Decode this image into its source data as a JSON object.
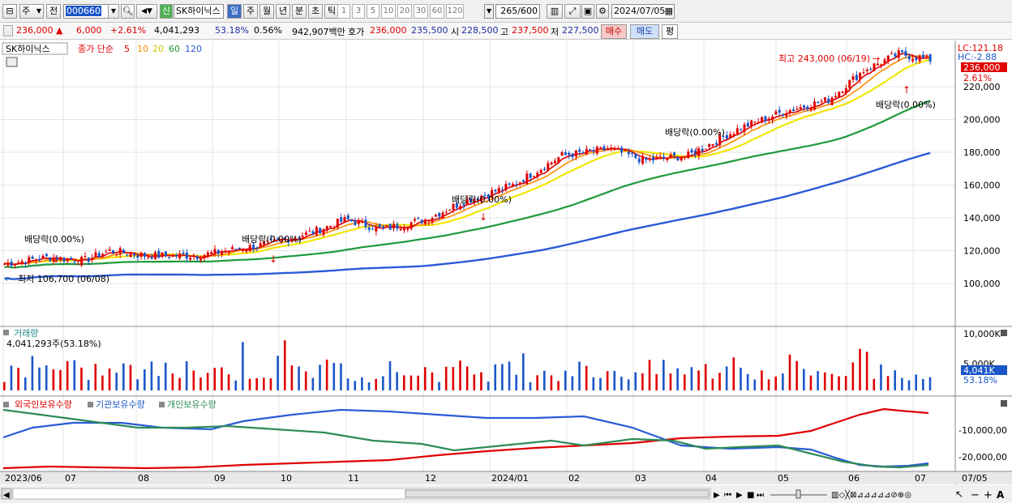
{
  "toolbar": {
    "period_label": "주",
    "prev_label": "전",
    "stock_code": "000660",
    "new_label": "신",
    "stock_name": "SK하이닉스",
    "tabs": [
      "일",
      "주",
      "월",
      "년",
      "분",
      "초",
      "틱"
    ],
    "active_tab": "일",
    "interval_buttons": [
      "1",
      "3",
      "5",
      "10",
      "20",
      "30",
      "60",
      "120"
    ],
    "count_current": "265",
    "count_total": "/600",
    "date": "2024/07/05"
  },
  "quote": {
    "price": "236,000",
    "change": "6,000",
    "change_pct": "+2.61%",
    "volume": "4,041,293",
    "volume_ratio": "53.18%",
    "turnover_ratio": "0.56%",
    "amount": "942,907백만",
    "hoga_label": "호가",
    "ask": "236,000",
    "bid": "235,500",
    "open_label": "시",
    "open": "228,500",
    "high_label": "고",
    "high": "237,500",
    "low_label": "저",
    "low": "227,500",
    "buy_label": "매수",
    "sell_label": "매도",
    "eval_label": "평"
  },
  "price_panel": {
    "name": "SK하이닉스",
    "legend_prefix": "종가 단순",
    "ma_periods": [
      "5",
      "10",
      "20",
      "60",
      "120"
    ],
    "lc_label": "LC:121.18",
    "hc_label": "HC:-2.88",
    "current_price": "236,000",
    "current_pct": "2.61%",
    "high_annotation": "최고 243,000 (06/19)",
    "low_annotation": "최저 106,700 (06/08)",
    "dividend_label": "배당락(0.00%)",
    "y_ticks": [
      "220,000",
      "200,000",
      "180,000",
      "160,000",
      "140,000",
      "120,000",
      "100,000"
    ]
  },
  "volume_panel": {
    "title": "거래량",
    "value": "4,041,293주(53.18%)",
    "y_ticks": [
      "10,000K",
      "5,000K"
    ],
    "current": "4,041K",
    "current_pct": "53.18%"
  },
  "holding_panel": {
    "legend": [
      "외국인보유수량",
      "기관보유수량",
      "개인보유수량"
    ],
    "y_ticks": [
      "-10,000,00",
      "-20,000,00"
    ]
  },
  "x_axis": {
    "labels": [
      "2023/06",
      "07",
      "08",
      "09",
      "10",
      "11",
      "12",
      "2024/01",
      "02",
      "03",
      "04",
      "05",
      "06",
      "07"
    ],
    "right_label": "07/05"
  },
  "colors": {
    "up": "#e00000",
    "down": "#1a56c8",
    "ma5": "#e00000",
    "ma10": "#ff8c00",
    "ma20": "#f2e600",
    "ma60": "#1f9a3a",
    "ma120": "#2a5bd7",
    "foreign": "#e00000",
    "institution": "#2a5bd7",
    "individual": "#2e8b57"
  }
}
